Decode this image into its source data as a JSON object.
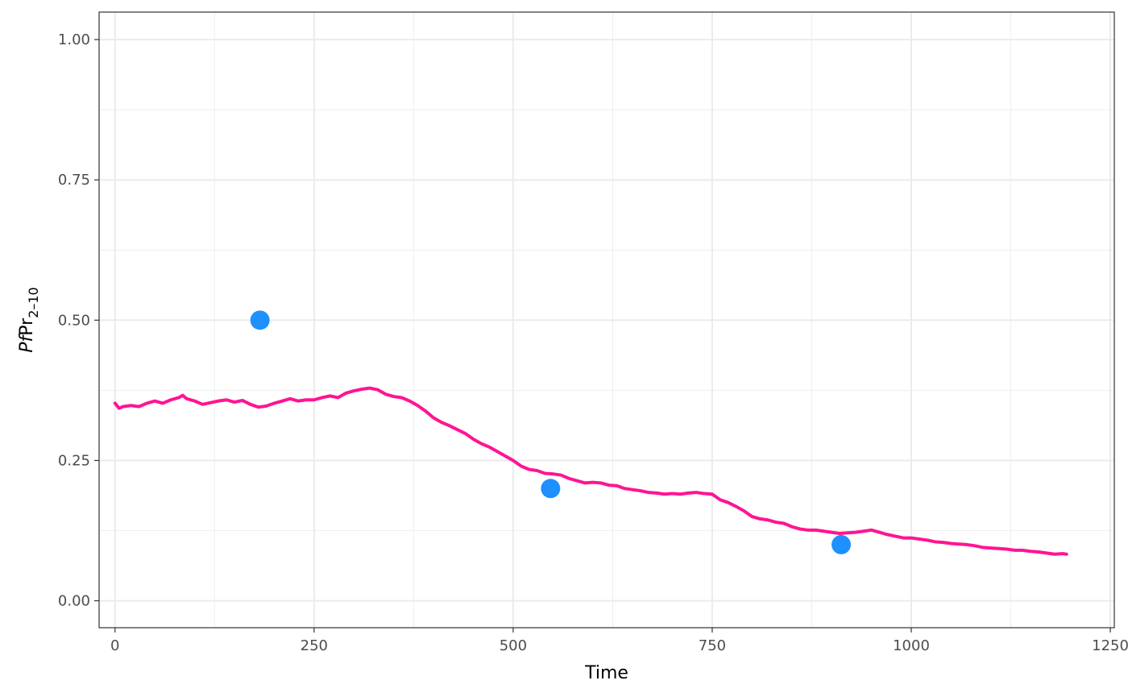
{
  "chart_data": {
    "type": "line",
    "xlabel": "Time",
    "ylabel": {
      "italic": "Pf",
      "base": "Pr",
      "subscript": "2–10"
    },
    "xlim": [
      -20,
      1255
    ],
    "ylim": [
      -0.048,
      1.049
    ],
    "x_ticks": [
      0,
      250,
      500,
      750,
      1000,
      1250
    ],
    "x_tick_labels": [
      "0",
      "250",
      "500",
      "750",
      "1000",
      "1250"
    ],
    "y_ticks": [
      0,
      0.25,
      0.5,
      0.75,
      1.0
    ],
    "y_tick_labels": [
      "0.00",
      "0.25",
      "0.50",
      "0.75",
      "1.00"
    ],
    "grid": true,
    "series": [
      {
        "type": "line",
        "color": "#ff1493",
        "x": [
          0,
          5,
          10,
          20,
          30,
          40,
          50,
          60,
          70,
          80,
          85,
          90,
          100,
          110,
          120,
          130,
          140,
          150,
          160,
          170,
          180,
          190,
          200,
          210,
          220,
          230,
          240,
          250,
          260,
          270,
          280,
          290,
          300,
          310,
          320,
          330,
          340,
          350,
          360,
          370,
          380,
          390,
          400,
          410,
          420,
          430,
          440,
          450,
          460,
          470,
          480,
          490,
          500,
          510,
          520,
          530,
          540,
          550,
          560,
          570,
          580,
          590,
          600,
          610,
          620,
          630,
          640,
          650,
          660,
          670,
          680,
          690,
          700,
          710,
          720,
          730,
          740,
          750,
          760,
          770,
          780,
          790,
          800,
          810,
          820,
          830,
          840,
          850,
          860,
          870,
          880,
          890,
          900,
          910,
          920,
          930,
          940,
          950,
          960,
          970,
          980,
          990,
          1000,
          1010,
          1020,
          1030,
          1040,
          1050,
          1060,
          1070,
          1080,
          1090,
          1100,
          1110,
          1120,
          1130,
          1140,
          1150,
          1160,
          1170,
          1180,
          1190,
          1195
        ],
        "y": [
          0.352,
          0.343,
          0.346,
          0.348,
          0.346,
          0.352,
          0.356,
          0.352,
          0.358,
          0.362,
          0.366,
          0.36,
          0.356,
          0.35,
          0.353,
          0.356,
          0.358,
          0.354,
          0.357,
          0.35,
          0.345,
          0.347,
          0.352,
          0.356,
          0.36,
          0.356,
          0.358,
          0.358,
          0.362,
          0.365,
          0.362,
          0.37,
          0.374,
          0.377,
          0.379,
          0.376,
          0.368,
          0.364,
          0.362,
          0.356,
          0.348,
          0.338,
          0.326,
          0.318,
          0.312,
          0.305,
          0.298,
          0.288,
          0.28,
          0.274,
          0.266,
          0.258,
          0.25,
          0.24,
          0.234,
          0.232,
          0.227,
          0.226,
          0.224,
          0.218,
          0.214,
          0.21,
          0.211,
          0.21,
          0.206,
          0.205,
          0.2,
          0.198,
          0.196,
          0.193,
          0.192,
          0.19,
          0.191,
          0.19,
          0.192,
          0.193,
          0.191,
          0.19,
          0.18,
          0.175,
          0.168,
          0.16,
          0.15,
          0.146,
          0.144,
          0.14,
          0.138,
          0.132,
          0.128,
          0.126,
          0.126,
          0.124,
          0.122,
          0.12,
          0.121,
          0.122,
          0.124,
          0.126,
          0.122,
          0.118,
          0.115,
          0.112,
          0.112,
          0.11,
          0.108,
          0.105,
          0.104,
          0.102,
          0.101,
          0.1,
          0.098,
          0.095,
          0.094,
          0.093,
          0.092,
          0.09,
          0.09,
          0.088,
          0.087,
          0.085,
          0.083,
          0.084,
          0.083
        ]
      },
      {
        "type": "scatter",
        "color": "#1e90ff",
        "x": [
          182,
          547,
          912
        ],
        "y": [
          0.5,
          0.2,
          0.1
        ]
      }
    ]
  }
}
